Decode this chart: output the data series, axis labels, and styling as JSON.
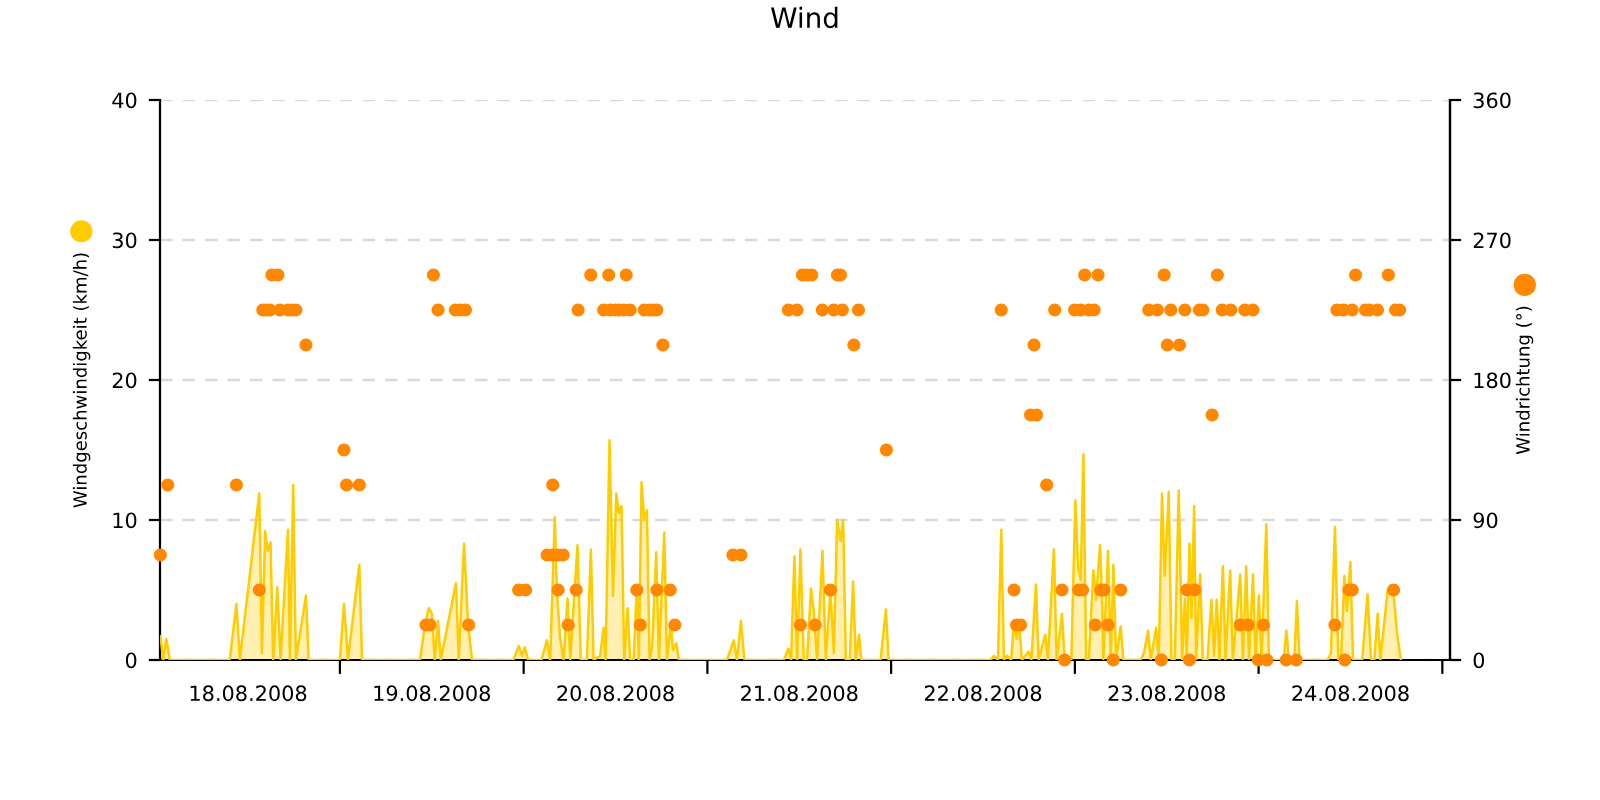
{
  "chart_data": {
    "type": "area",
    "title": "Wind",
    "ylabel": "Windgeschwindigkeit (km/h)",
    "y2label": "Windrichtung (°)",
    "xlim": [
      "2008-08-18T00:30",
      "2008-08-25T01:00"
    ],
    "xticks": [
      {
        "value": "2008-08-18T12:00",
        "label": "18.08.2008"
      },
      {
        "value": "2008-08-19T00:00",
        "label": null
      },
      {
        "value": "2008-08-19T12:00",
        "label": "19.08.2008"
      },
      {
        "value": "2008-08-20T00:00",
        "label": null
      },
      {
        "value": "2008-08-20T12:00",
        "label": "20.08.2008"
      },
      {
        "value": "2008-08-21T00:00",
        "label": null
      },
      {
        "value": "2008-08-21T12:00",
        "label": "21.08.2008"
      },
      {
        "value": "2008-08-22T00:00",
        "label": null
      },
      {
        "value": "2008-08-22T12:00",
        "label": "22.08.2008"
      },
      {
        "value": "2008-08-23T00:00",
        "label": null
      },
      {
        "value": "2008-08-23T12:00",
        "label": "23.08.2008"
      },
      {
        "value": "2008-08-24T00:00",
        "label": null
      },
      {
        "value": "2008-08-24T12:00",
        "label": "24.08.2008"
      },
      {
        "value": "2008-08-25T00:00",
        "label": null
      }
    ],
    "ylim": [
      0,
      40
    ],
    "yticks": [
      0,
      10,
      20,
      30,
      40
    ],
    "y2lim": [
      0,
      360
    ],
    "y2ticks": [
      0,
      90,
      180,
      270,
      360
    ],
    "grid": "y",
    "series": [
      {
        "color": "#ffcc00",
        "x": [
          "2008-08-18T00:34",
          "2008-08-18T00:55",
          "2008-08-18T01:20",
          "2008-08-18T01:47",
          "2008-08-18T09:37",
          "2008-08-18T10:29",
          "2008-08-18T10:56",
          "2008-08-18T13:28",
          "2008-08-18T13:49",
          "2008-08-18T14:14",
          "2008-08-18T14:35",
          "2008-08-18T14:56",
          "2008-08-18T15:17",
          "2008-08-18T15:49",
          "2008-08-18T16:15",
          "2008-08-18T17:13",
          "2008-08-18T17:28",
          "2008-08-18T17:54",
          "2008-08-18T18:15",
          "2008-08-18T19:34",
          "2008-08-18T19:55",
          "2008-08-19T00:00",
          "2008-08-19T00:32",
          "2008-08-19T01:03",
          "2008-08-19T02:32",
          "2008-08-19T02:53",
          "2008-08-19T10:28",
          "2008-08-19T11:10",
          "2008-08-19T11:36",
          "2008-08-19T12:02",
          "2008-08-19T12:23",
          "2008-08-19T12:49",
          "2008-08-19T13:10",
          "2008-08-19T15:10",
          "2008-08-19T15:31",
          "2008-08-19T16:13",
          "2008-08-19T16:44",
          "2008-08-19T17:16",
          "2008-08-19T22:40",
          "2008-08-19T23:22",
          "2008-08-19T23:48",
          "2008-08-20T00:09",
          "2008-08-20T00:35",
          "2008-08-20T02:20",
          "2008-08-20T03:02",
          "2008-08-20T03:28",
          "2008-08-20T04:04",
          "2008-08-20T04:20",
          "2008-08-20T04:46",
          "2008-08-20T05:13",
          "2008-08-20T05:44",
          "2008-08-20T06:05",
          "2008-08-20T07:02",
          "2008-08-20T07:28",
          "2008-08-20T08:16",
          "2008-08-20T08:47",
          "2008-08-20T09:08",
          "2008-08-20T10:00",
          "2008-08-20T10:26",
          "2008-08-20T10:42",
          "2008-08-20T11:13",
          "2008-08-20T11:40",
          "2008-08-20T12:06",
          "2008-08-20T12:26",
          "2008-08-20T12:47",
          "2008-08-20T13:08",
          "2008-08-20T13:35",
          "2008-08-20T13:55",
          "2008-08-20T14:22",
          "2008-08-20T14:47",
          "2008-08-20T15:03",
          "2008-08-20T15:24",
          "2008-08-20T15:45",
          "2008-08-20T16:06",
          "2008-08-20T16:27",
          "2008-08-20T16:48",
          "2008-08-20T17:19",
          "2008-08-20T17:40",
          "2008-08-20T18:22",
          "2008-08-20T18:43",
          "2008-08-20T19:14",
          "2008-08-20T19:30",
          "2008-08-20T19:56",
          "2008-08-20T20:17",
          "2008-08-21T02:34",
          "2008-08-21T03:26",
          "2008-08-21T03:52",
          "2008-08-21T04:23",
          "2008-08-21T04:50",
          "2008-08-21T09:58",
          "2008-08-21T10:35",
          "2008-08-21T10:56",
          "2008-08-21T11:22",
          "2008-08-21T11:43",
          "2008-08-21T12:09",
          "2008-08-21T12:35",
          "2008-08-21T13:01",
          "2008-08-21T13:32",
          "2008-08-21T13:53",
          "2008-08-21T14:20",
          "2008-08-21T15:02",
          "2008-08-21T15:28",
          "2008-08-21T16:04",
          "2008-08-21T16:31",
          "2008-08-21T16:57",
          "2008-08-21T17:23",
          "2008-08-21T17:44",
          "2008-08-21T18:05",
          "2008-08-21T18:36",
          "2008-08-21T19:02",
          "2008-08-21T19:23",
          "2008-08-21T19:49",
          "2008-08-21T20:05",
          "2008-08-21T22:37",
          "2008-08-21T23:19",
          "2008-08-21T23:40",
          "2008-08-22T00:21",
          "2008-08-22T12:59",
          "2008-08-22T13:26",
          "2008-08-22T13:57",
          "2008-08-22T14:23",
          "2008-08-22T14:44",
          "2008-08-22T15:10",
          "2008-08-22T15:41",
          "2008-08-22T16:02",
          "2008-08-22T16:23",
          "2008-08-22T16:44",
          "2008-08-22T17:05",
          "2008-08-22T17:58",
          "2008-08-22T18:19",
          "2008-08-22T18:55",
          "2008-08-22T19:16",
          "2008-08-22T20:08",
          "2008-08-22T20:29",
          "2008-08-22T21:16",
          "2008-08-22T21:37",
          "2008-08-22T22:19",
          "2008-08-22T22:40",
          "2008-08-22T23:32",
          "2008-08-23T00:04",
          "2008-08-23T00:25",
          "2008-08-23T00:46",
          "2008-08-23T01:07",
          "2008-08-23T01:28",
          "2008-08-23T01:49",
          "2008-08-23T02:25",
          "2008-08-23T02:46",
          "2008-08-23T03:17",
          "2008-08-23T03:33",
          "2008-08-23T03:43",
          "2008-08-23T04:20",
          "2008-08-23T04:41",
          "2008-08-23T05:02",
          "2008-08-23T05:23",
          "2008-08-23T05:59",
          "2008-08-23T06:20",
          "2008-08-23T08:36",
          "2008-08-23T09:02",
          "2008-08-23T09:34",
          "2008-08-23T09:55",
          "2008-08-23T10:37",
          "2008-08-23T10:58",
          "2008-08-23T11:23",
          "2008-08-23T11:44",
          "2008-08-23T12:16",
          "2008-08-23T12:37",
          "2008-08-23T13:03",
          "2008-08-23T13:34",
          "2008-08-23T14:01",
          "2008-08-23T14:22",
          "2008-08-23T14:37",
          "2008-08-23T14:58",
          "2008-08-23T15:14",
          "2008-08-23T15:35",
          "2008-08-23T15:50",
          "2008-08-23T16:22",
          "2008-08-23T16:43",
          "2008-08-23T17:19",
          "2008-08-23T17:50",
          "2008-08-23T18:11",
          "2008-08-23T18:32",
          "2008-08-23T18:53",
          "2008-08-23T19:20",
          "2008-08-23T19:41",
          "2008-08-23T20:17",
          "2008-08-23T20:38",
          "2008-08-23T21:36",
          "2008-08-23T21:57",
          "2008-08-23T22:23",
          "2008-08-23T22:44",
          "2008-08-23T23:16",
          "2008-08-23T23:36",
          "2008-08-24T00:02",
          "2008-08-24T00:23",
          "2008-08-24T01:00",
          "2008-08-24T01:21",
          "2008-08-24T03:16",
          "2008-08-24T03:37",
          "2008-08-24T03:58",
          "2008-08-24T04:40",
          "2008-08-24T05:00",
          "2008-08-24T05:21",
          "2008-08-24T09:01",
          "2008-08-24T09:27",
          "2008-08-24T09:58",
          "2008-08-24T10:25",
          "2008-08-24T10:46",
          "2008-08-24T11:12",
          "2008-08-24T11:32",
          "2008-08-24T11:59",
          "2008-08-24T12:20",
          "2008-08-24T13:32",
          "2008-08-24T14:14",
          "2008-08-24T14:41",
          "2008-08-24T15:07",
          "2008-08-24T15:33",
          "2008-08-24T15:54",
          "2008-08-24T16:52",
          "2008-08-24T17:12",
          "2008-08-24T17:38",
          "2008-08-24T18:04",
          "2008-08-24T18:35"
        ],
        "values": [
          1.7,
          0,
          1.5,
          0,
          0,
          4,
          0,
          11.9,
          0.5,
          9.2,
          7.8,
          8.4,
          0,
          5.2,
          0,
          9.3,
          0,
          12.5,
          0,
          4.6,
          0,
          0,
          4,
          0,
          6.8,
          0,
          0,
          2.7,
          3.7,
          3.3,
          0,
          2.8,
          0,
          5.5,
          0,
          8.3,
          2.6,
          0,
          0,
          1,
          0.3,
          0.9,
          0,
          0,
          1.4,
          0,
          10.2,
          5,
          1.5,
          0,
          4.4,
          0,
          8.2,
          0,
          0,
          7.9,
          0,
          0.3,
          2.3,
          0,
          15.7,
          4.6,
          11.9,
          10.5,
          11,
          0,
          3.7,
          0,
          0,
          5.3,
          0,
          12.7,
          10,
          10.7,
          0,
          1,
          7.7,
          0,
          9.1,
          0,
          2.7,
          0.7,
          1.2,
          0,
          0,
          1.4,
          0,
          2.8,
          0,
          0,
          0.8,
          0,
          7.4,
          0,
          7.9,
          0,
          0,
          5.1,
          3.5,
          0,
          7.8,
          0,
          5,
          0.5,
          10,
          8.5,
          10,
          0,
          0,
          5.6,
          0,
          1.8,
          0,
          0,
          3.6,
          0,
          0,
          0,
          0.3,
          0,
          9.3,
          0,
          0.3,
          0,
          2.6,
          1.5,
          2.6,
          0,
          0.6,
          0,
          5.4,
          0,
          1.8,
          0,
          7.9,
          0,
          3.3,
          0,
          0,
          11.4,
          6.6,
          5.7,
          14.7,
          0,
          0,
          6.4,
          4.3,
          8.2,
          4.6,
          0,
          7.8,
          0,
          6.8,
          0,
          2.4,
          0,
          0,
          0.5,
          2.1,
          0,
          2.3,
          0,
          11.9,
          6,
          12,
          0,
          0,
          12.1,
          0,
          4.4,
          0,
          8.3,
          3,
          11,
          0,
          6.1,
          0,
          0,
          4.3,
          0.3,
          4.3,
          0,
          6.7,
          0,
          6.4,
          0,
          6.1,
          0,
          6.7,
          0,
          6.1,
          0,
          4.6,
          0,
          9.7,
          0,
          0,
          2.1,
          0,
          0,
          4.2,
          0,
          0,
          0.5,
          9.5,
          0,
          0,
          6,
          3.5,
          7,
          0,
          0,
          4.7,
          0,
          0,
          3.3,
          0,
          5,
          4.7,
          4.7,
          2,
          0
        ]
      },
      {
        "type": "scatter",
        "axis": "y2",
        "color": "#ff8800",
        "marker": "circle",
        "x": [
          "2008-08-18T00:33",
          "2008-08-18T01:31",
          "2008-08-18T10:29",
          "2008-08-18T13:28",
          "2008-08-18T13:56",
          "2008-08-18T14:20",
          "2008-08-18T14:51",
          "2008-08-18T15:07",
          "2008-08-18T15:54",
          "2008-08-18T16:10",
          "2008-08-18T17:13",
          "2008-08-18T17:44",
          "2008-08-18T18:15",
          "2008-08-18T19:34",
          "2008-08-19T00:32",
          "2008-08-19T00:52",
          "2008-08-19T02:32",
          "2008-08-19T11:15",
          "2008-08-19T11:47",
          "2008-08-19T12:13",
          "2008-08-19T12:49",
          "2008-08-19T15:05",
          "2008-08-19T15:41",
          "2008-08-19T16:24",
          "2008-08-19T16:49",
          "2008-08-19T23:21",
          "2008-08-20T00:15",
          "2008-08-20T03:04",
          "2008-08-20T03:43",
          "2008-08-20T04:30",
          "2008-08-20T05:10",
          "2008-08-20T03:48",
          "2008-08-20T04:30",
          "2008-08-20T05:49",
          "2008-08-20T06:52",
          "2008-08-20T07:07",
          "2008-08-20T08:46",
          "2008-08-20T10:27",
          "2008-08-20T11:07",
          "2008-08-20T11:18",
          "2008-08-20T12:01",
          "2008-08-20T12:29",
          "2008-08-20T13:03",
          "2008-08-20T13:24",
          "2008-08-20T13:55",
          "2008-08-20T14:47",
          "2008-08-20T15:14",
          "2008-08-20T15:45",
          "2008-08-20T16:25",
          "2008-08-20T16:56",
          "2008-08-20T17:24",
          "2008-08-20T17:24",
          "2008-08-20T18:11",
          "2008-08-20T19:09",
          "2008-08-20T19:45",
          "2008-08-21T03:20",
          "2008-08-21T04:23",
          "2008-08-21T10:35",
          "2008-08-21T11:42",
          "2008-08-21T12:09",
          "2008-08-21T12:25",
          "2008-08-21T13:04",
          "2008-08-21T13:38",
          "2008-08-21T14:04",
          "2008-08-21T15:01",
          "2008-08-21T16:04",
          "2008-08-21T16:31",
          "2008-08-21T16:59",
          "2008-08-21T17:23",
          "2008-08-21T17:38",
          "2008-08-21T19:08",
          "2008-08-21T19:44",
          "2008-08-21T23:23",
          "2008-08-22T14:23",
          "2008-08-22T16:03",
          "2008-08-22T16:23",
          "2008-08-22T16:55",
          "2008-08-22T18:13",
          "2008-08-22T19:00",
          "2008-08-22T18:40",
          "2008-08-22T20:19",
          "2008-08-22T21:22",
          "2008-08-22T22:19",
          "2008-08-22T22:40",
          "2008-08-22T23:58",
          "2008-08-23T00:46",
          "2008-08-23T00:30",
          "2008-08-23T01:01",
          "2008-08-23T01:17",
          "2008-08-23T01:49",
          "2008-08-23T02:31",
          "2008-08-23T02:40",
          "2008-08-23T03:02",
          "2008-08-23T03:22",
          "2008-08-23T03:49",
          "2008-08-23T04:20",
          "2008-08-23T05:01",
          "2008-08-23T05:59",
          "2008-08-23T09:39",
          "2008-08-23T10:47",
          "2008-08-23T11:18",
          "2008-08-23T11:40",
          "2008-08-23T12:05",
          "2008-08-23T12:32",
          "2008-08-23T13:40",
          "2008-08-23T14:22",
          "2008-08-23T14:38",
          "2008-08-23T14:58",
          "2008-08-23T15:40",
          "2008-08-23T16:16",
          "2008-08-23T16:43",
          "2008-08-23T17:56",
          "2008-08-23T18:37",
          "2008-08-23T19:15",
          "2008-08-23T20:22",
          "2008-08-23T21:36",
          "2008-08-23T22:12",
          "2008-08-23T22:39",
          "2008-08-23T23:15",
          "2008-08-23T23:58",
          "2008-08-24T00:38",
          "2008-08-24T01:05",
          "2008-08-24T03:37",
          "2008-08-24T04:55",
          "2008-08-24T09:58",
          "2008-08-24T10:14",
          "2008-08-24T11:06",
          "2008-08-24T11:16",
          "2008-08-24T11:48",
          "2008-08-24T12:14",
          "2008-08-24T12:14",
          "2008-08-24T12:40",
          "2008-08-24T13:58",
          "2008-08-24T14:29",
          "2008-08-24T15:32",
          "2008-08-24T16:57",
          "2008-08-24T17:38",
          "2008-08-24T17:53",
          "2008-08-24T18:25"
        ],
        "values": [
          67.5,
          112.5,
          112.5,
          45,
          225,
          225,
          225,
          247.5,
          247.5,
          225,
          225,
          225,
          225,
          202.5,
          135,
          112.5,
          112.5,
          22.5,
          22.5,
          247.5,
          225,
          225,
          225,
          225,
          22.5,
          45,
          45,
          67.5,
          67.5,
          67.5,
          67.5,
          112.5,
          45,
          22.5,
          45,
          225,
          247.5,
          225,
          247.5,
          225,
          225,
          225,
          225,
          247.5,
          225,
          45,
          22.5,
          225,
          225,
          225,
          225,
          45,
          202.5,
          45,
          22.5,
          67.5,
          67.5,
          225,
          225,
          22.5,
          247.5,
          247.5,
          247.5,
          22.5,
          225,
          45,
          225,
          247.5,
          247.5,
          225,
          202.5,
          225,
          135,
          225,
          45,
          22.5,
          22.5,
          157.5,
          157.5,
          202.5,
          112.5,
          225,
          45,
          0,
          225,
          225,
          45,
          45,
          247.5,
          225,
          225,
          22.5,
          247.5,
          45,
          45,
          22.5,
          0,
          45,
          225,
          225,
          0,
          247.5,
          202.5,
          225,
          202.5,
          225,
          45,
          0,
          45,
          225,
          225,
          157.5,
          247.5,
          225,
          225,
          22.5,
          225,
          22.5,
          225,
          0,
          22.5,
          0,
          0,
          0,
          22.5,
          225,
          225,
          0,
          45,
          45,
          225,
          247.5,
          225,
          225,
          225,
          247.5,
          45,
          225,
          225
        ]
      }
    ]
  }
}
